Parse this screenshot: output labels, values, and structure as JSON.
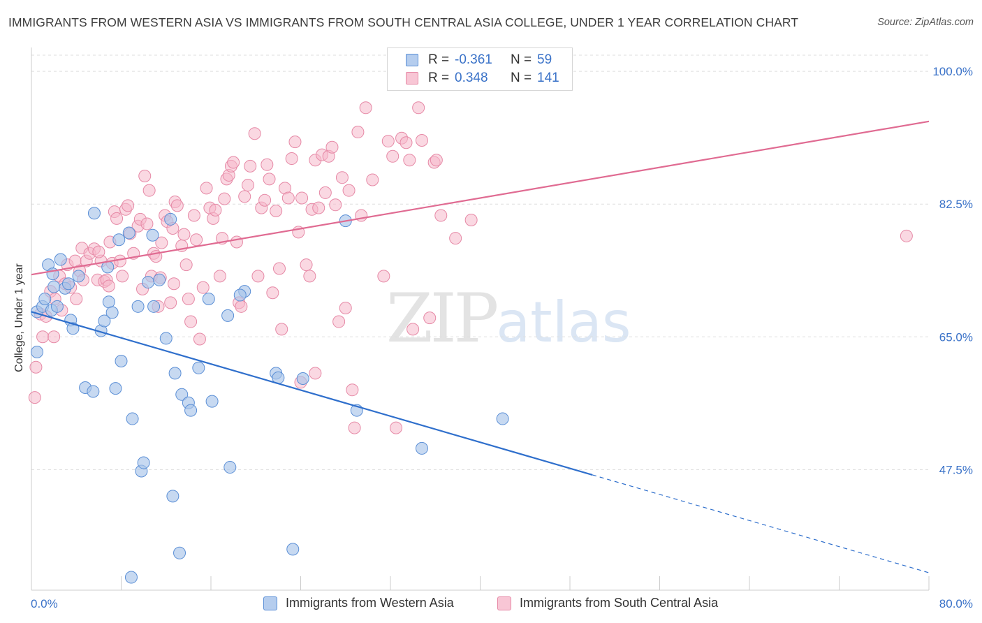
{
  "title": "IMMIGRANTS FROM WESTERN ASIA VS IMMIGRANTS FROM SOUTH CENTRAL ASIA COLLEGE, UNDER 1 YEAR CORRELATION CHART",
  "source": "Source: ZipAtlas.com",
  "watermark": {
    "zip": "ZIP",
    "atlas": "atlas"
  },
  "colors": {
    "blue_fill": "#a9c4ea",
    "blue_stroke": "#5b8fd6",
    "blue_line": "#2f6fcc",
    "pink_fill": "#f5b8cb",
    "pink_stroke": "#e689a6",
    "pink_line": "#e06b92",
    "tick_label": "#3a72c8",
    "grid": "#dddddd"
  },
  "legend_top": {
    "r_label": "R =",
    "n_label": "N =",
    "rows": [
      {
        "r": "-0.361",
        "n": "59"
      },
      {
        "r": "0.348",
        "n": "141"
      }
    ]
  },
  "legend_bottom": [
    "Immigrants from Western Asia",
    "Immigrants from South Central Asia"
  ],
  "chart_data": {
    "type": "scatter",
    "title": "IMMIGRANTS FROM WESTERN ASIA VS IMMIGRANTS FROM SOUTH CENTRAL ASIA COLLEGE, UNDER 1 YEAR CORRELATION CHART",
    "xlabel": "",
    "ylabel": "College, Under 1 year",
    "xlim": [
      0,
      80
    ],
    "ylim": [
      31.6,
      102.5
    ],
    "x_tick_labels": [
      "0.0%",
      "80.0%"
    ],
    "y_ticks": [
      47.5,
      65.0,
      82.5,
      100.0
    ],
    "y_tick_labels": [
      "47.5%",
      "65.0%",
      "82.5%",
      "100.0%"
    ],
    "grid": true,
    "legend_position": "top-center",
    "series": [
      {
        "name": "Immigrants from Western Asia",
        "r": -0.361,
        "n": 59,
        "trend": {
          "x": [
            0.0,
            50.0
          ],
          "y": [
            68.3,
            46.8
          ],
          "dashed_to": [
            80.0,
            33.9
          ]
        },
        "points": [
          [
            0.5,
            68.3
          ],
          [
            0.5,
            63.0
          ],
          [
            1.0,
            69.0
          ],
          [
            1.2,
            70.0
          ],
          [
            1.5,
            74.5
          ],
          [
            1.8,
            68.5
          ],
          [
            1.9,
            73.3
          ],
          [
            2.0,
            71.6
          ],
          [
            2.3,
            69.0
          ],
          [
            2.6,
            75.2
          ],
          [
            3.0,
            71.4
          ],
          [
            3.3,
            72.0
          ],
          [
            3.5,
            67.2
          ],
          [
            3.7,
            66.1
          ],
          [
            4.8,
            58.3
          ],
          [
            5.5,
            57.8
          ],
          [
            5.6,
            81.3
          ],
          [
            6.2,
            65.8
          ],
          [
            6.5,
            67.1
          ],
          [
            6.9,
            69.6
          ],
          [
            6.8,
            74.2
          ],
          [
            7.2,
            68.2
          ],
          [
            7.5,
            58.2
          ],
          [
            7.8,
            77.8
          ],
          [
            8.0,
            61.8
          ],
          [
            8.7,
            78.7
          ],
          [
            9.0,
            54.2
          ],
          [
            9.8,
            47.3
          ],
          [
            10.0,
            48.4
          ],
          [
            10.4,
            72.2
          ],
          [
            10.8,
            78.4
          ],
          [
            10.9,
            69.0
          ],
          [
            11.4,
            72.5
          ],
          [
            12.0,
            64.8
          ],
          [
            12.4,
            80.5
          ],
          [
            12.6,
            44.0
          ],
          [
            12.8,
            60.2
          ],
          [
            13.2,
            36.5
          ],
          [
            13.4,
            57.4
          ],
          [
            14.0,
            56.3
          ],
          [
            14.2,
            55.3
          ],
          [
            14.9,
            60.9
          ],
          [
            15.8,
            70.0
          ],
          [
            16.1,
            56.5
          ],
          [
            17.5,
            67.8
          ],
          [
            17.7,
            47.8
          ],
          [
            19.0,
            71.0
          ],
          [
            18.6,
            70.5
          ],
          [
            21.8,
            60.2
          ],
          [
            22.0,
            59.6
          ],
          [
            23.3,
            37.0
          ],
          [
            24.2,
            59.5
          ],
          [
            28.0,
            80.3
          ],
          [
            29.0,
            55.3
          ],
          [
            34.8,
            50.3
          ],
          [
            42.0,
            54.2
          ],
          [
            8.9,
            33.3
          ],
          [
            4.2,
            73.0
          ],
          [
            9.5,
            69.0
          ]
        ]
      },
      {
        "name": "Immigrants from South Central Asia",
        "r": 0.348,
        "n": 141,
        "trend": {
          "x": [
            0.0,
            80.0
          ],
          "y": [
            73.2,
            93.4
          ]
        },
        "points": [
          [
            0.3,
            57.0
          ],
          [
            0.4,
            61.0
          ],
          [
            0.8,
            68.0
          ],
          [
            1.0,
            65.0
          ],
          [
            1.3,
            67.7
          ],
          [
            1.7,
            71.0
          ],
          [
            2.0,
            65.0
          ],
          [
            2.1,
            70.0
          ],
          [
            2.5,
            73.0
          ],
          [
            2.7,
            68.5
          ],
          [
            3.0,
            72.0
          ],
          [
            3.2,
            74.5
          ],
          [
            3.5,
            71.5
          ],
          [
            3.9,
            75.0
          ],
          [
            4.0,
            70.0
          ],
          [
            4.3,
            73.7
          ],
          [
            4.5,
            76.7
          ],
          [
            4.6,
            72.5
          ],
          [
            4.9,
            75.0
          ],
          [
            5.2,
            76.0
          ],
          [
            5.6,
            76.6
          ],
          [
            5.9,
            72.5
          ],
          [
            6.2,
            75.0
          ],
          [
            6.5,
            72.3
          ],
          [
            6.7,
            72.5
          ],
          [
            6.9,
            71.7
          ],
          [
            7.0,
            77.5
          ],
          [
            7.2,
            74.7
          ],
          [
            7.4,
            81.5
          ],
          [
            7.6,
            80.6
          ],
          [
            7.9,
            75.0
          ],
          [
            8.1,
            73.0
          ],
          [
            8.4,
            81.8
          ],
          [
            8.6,
            82.3
          ],
          [
            8.8,
            78.6
          ],
          [
            9.1,
            76.0
          ],
          [
            9.5,
            79.6
          ],
          [
            9.7,
            80.5
          ],
          [
            9.9,
            71.3
          ],
          [
            10.1,
            86.2
          ],
          [
            10.3,
            79.9
          ],
          [
            10.5,
            84.3
          ],
          [
            10.7,
            73.0
          ],
          [
            10.9,
            76.0
          ],
          [
            11.1,
            75.6
          ],
          [
            11.3,
            69.0
          ],
          [
            11.5,
            72.8
          ],
          [
            11.6,
            77.4
          ],
          [
            11.9,
            81.0
          ],
          [
            12.1,
            80.2
          ],
          [
            12.4,
            69.5
          ],
          [
            12.6,
            79.3
          ],
          [
            12.8,
            82.8
          ],
          [
            13.0,
            82.3
          ],
          [
            13.4,
            77.0
          ],
          [
            13.6,
            78.5
          ],
          [
            13.8,
            74.5
          ],
          [
            14.0,
            70.0
          ],
          [
            14.2,
            67.0
          ],
          [
            14.5,
            81.0
          ],
          [
            14.7,
            77.8
          ],
          [
            15.0,
            64.7
          ],
          [
            15.3,
            71.5
          ],
          [
            15.6,
            84.6
          ],
          [
            15.9,
            82.0
          ],
          [
            16.2,
            80.6
          ],
          [
            16.4,
            81.7
          ],
          [
            16.8,
            73.0
          ],
          [
            17.0,
            78.0
          ],
          [
            17.2,
            83.2
          ],
          [
            17.4,
            85.8
          ],
          [
            17.6,
            86.3
          ],
          [
            17.8,
            87.5
          ],
          [
            18.0,
            88.0
          ],
          [
            18.3,
            77.5
          ],
          [
            18.5,
            69.5
          ],
          [
            18.7,
            69.0
          ],
          [
            19.0,
            83.5
          ],
          [
            19.3,
            85.0
          ],
          [
            19.5,
            87.5
          ],
          [
            19.9,
            91.8
          ],
          [
            20.2,
            73.0
          ],
          [
            20.5,
            82.0
          ],
          [
            20.8,
            83.0
          ],
          [
            21.0,
            87.7
          ],
          [
            21.2,
            85.8
          ],
          [
            21.5,
            70.8
          ],
          [
            21.8,
            81.6
          ],
          [
            22.1,
            74.0
          ],
          [
            22.3,
            66.0
          ],
          [
            22.6,
            84.6
          ],
          [
            22.9,
            83.3
          ],
          [
            23.2,
            88.5
          ],
          [
            23.5,
            90.7
          ],
          [
            23.8,
            78.8
          ],
          [
            24.1,
            83.3
          ],
          [
            24.5,
            74.5
          ],
          [
            24.8,
            73.0
          ],
          [
            25.0,
            81.8
          ],
          [
            25.3,
            88.3
          ],
          [
            25.6,
            82.0
          ],
          [
            25.9,
            89.0
          ],
          [
            26.2,
            84.0
          ],
          [
            26.5,
            88.8
          ],
          [
            26.8,
            90.0
          ],
          [
            27.1,
            82.4
          ],
          [
            27.4,
            67.0
          ],
          [
            27.7,
            86.0
          ],
          [
            28.0,
            68.8
          ],
          [
            28.3,
            84.3
          ],
          [
            28.6,
            58.0
          ],
          [
            28.8,
            53.0
          ],
          [
            29.1,
            92.0
          ],
          [
            29.4,
            81.0
          ],
          [
            29.8,
            95.2
          ],
          [
            30.4,
            85.7
          ],
          [
            31.4,
            73.0
          ],
          [
            31.8,
            90.8
          ],
          [
            32.2,
            88.8
          ],
          [
            32.5,
            53.0
          ],
          [
            33.0,
            91.2
          ],
          [
            33.4,
            90.6
          ],
          [
            33.7,
            88.3
          ],
          [
            34.0,
            66.0
          ],
          [
            34.5,
            95.2
          ],
          [
            34.8,
            90.9
          ],
          [
            35.5,
            67.5
          ],
          [
            35.9,
            88.0
          ],
          [
            36.1,
            88.3
          ],
          [
            36.5,
            81.0
          ],
          [
            37.8,
            78.0
          ],
          [
            39.2,
            80.4
          ],
          [
            78.0,
            78.3
          ],
          [
            24.0,
            59.0
          ],
          [
            25.3,
            60.2
          ],
          [
            12.7,
            72.0
          ],
          [
            6.0,
            76.2
          ]
        ]
      }
    ]
  }
}
